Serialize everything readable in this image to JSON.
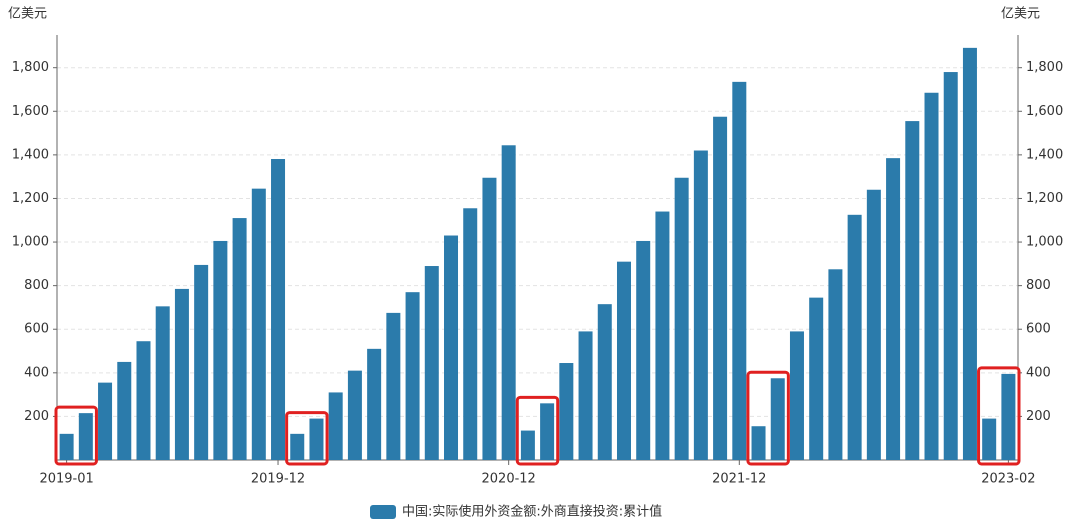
{
  "chart_data": {
    "type": "bar",
    "y_unit": "亿美元",
    "y2_unit": "亿美元",
    "categories": [
      "2019-01",
      null,
      null,
      null,
      null,
      null,
      null,
      null,
      null,
      null,
      null,
      "2019-12",
      null,
      null,
      null,
      null,
      null,
      null,
      null,
      null,
      null,
      null,
      null,
      "2020-12",
      null,
      null,
      null,
      null,
      null,
      null,
      null,
      null,
      null,
      null,
      null,
      "2021-12",
      null,
      null,
      null,
      null,
      null,
      null,
      null,
      null,
      null,
      null,
      null,
      null,
      null,
      "2023-02"
    ],
    "series": [
      {
        "name": "中国:实际使用外资金额:外商直接投资:累计值",
        "color": "#2b7bab",
        "values": [
          120,
          215,
          355,
          450,
          545,
          705,
          785,
          895,
          1005,
          1110,
          1245,
          1381,
          120,
          190,
          310,
          410,
          510,
          675,
          770,
          890,
          1030,
          1155,
          1295,
          1444,
          135,
          260,
          445,
          590,
          715,
          910,
          1005,
          1140,
          1295,
          1420,
          1575,
          1735,
          155,
          375,
          590,
          745,
          875,
          1125,
          1240,
          1385,
          1555,
          1685,
          1780,
          1891,
          190,
          395
        ]
      }
    ],
    "ylim": [
      0,
      1950
    ],
    "yticks": [
      200,
      400,
      600,
      800,
      {
        "value": 1000,
        "label": "1,000"
      },
      {
        "value": 1200,
        "label": "1,200"
      },
      {
        "value": 1400,
        "label": "1,400"
      },
      {
        "value": 1600,
        "label": "1,600"
      },
      {
        "value": 1800,
        "label": "1,800"
      }
    ],
    "y2lim": [
      0,
      1950
    ],
    "y2ticks": [
      200,
      400,
      600,
      800,
      {
        "value": 1000,
        "label": "1,000"
      },
      {
        "value": 1200,
        "label": "1,200"
      },
      {
        "value": 1400,
        "label": "1,400"
      },
      {
        "value": 1600,
        "label": "1,600"
      },
      {
        "value": 1800,
        "label": "1,800"
      }
    ],
    "grid": true,
    "legend": "bottom"
  }
}
